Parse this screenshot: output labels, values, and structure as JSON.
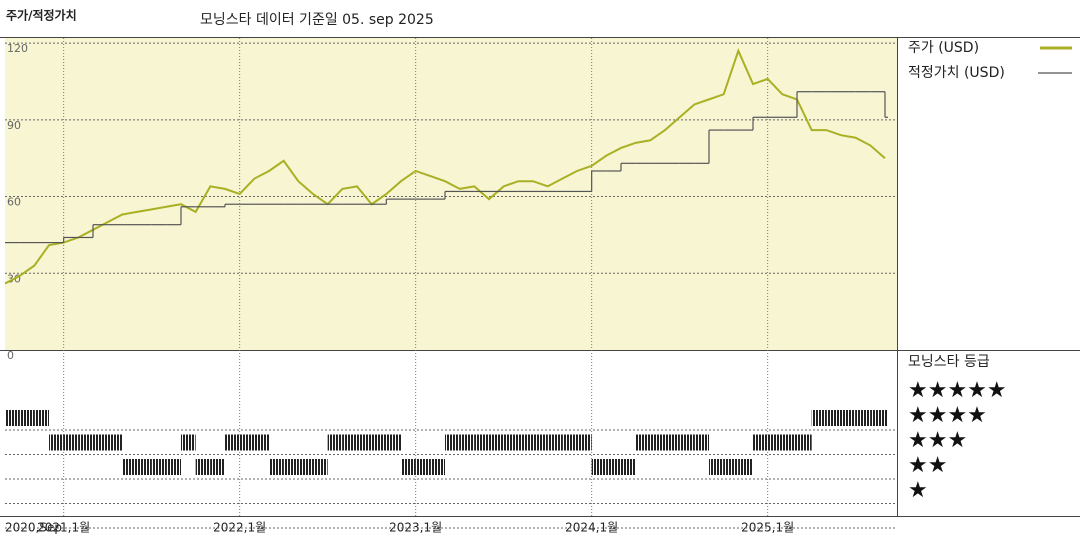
{
  "chart_data": [
    {
      "type": "line",
      "title": "주가/적정가치",
      "subtitle": "모닝스타 데이터 기준일 05. sep 2025",
      "x": [
        "2020-09",
        "2020-10",
        "2020-11",
        "2020-12",
        "2021-01",
        "2021-02",
        "2021-03",
        "2021-04",
        "2021-05",
        "2021-06",
        "2021-07",
        "2021-08",
        "2021-09",
        "2021-10",
        "2021-11",
        "2021-12",
        "2022-01",
        "2022-02",
        "2022-03",
        "2022-04",
        "2022-05",
        "2022-06",
        "2022-07",
        "2022-08",
        "2022-09",
        "2022-10",
        "2022-11",
        "2022-12",
        "2023-01",
        "2023-02",
        "2023-03",
        "2023-04",
        "2023-05",
        "2023-06",
        "2023-07",
        "2023-08",
        "2023-09",
        "2023-10",
        "2023-11",
        "2023-12",
        "2024-01",
        "2024-02",
        "2024-03",
        "2024-04",
        "2024-05",
        "2024-06",
        "2024-07",
        "2024-08",
        "2024-09",
        "2024-10",
        "2024-11",
        "2024-12",
        "2025-01",
        "2025-02",
        "2025-03",
        "2025-04",
        "2025-05",
        "2025-06",
        "2025-07",
        "2025-08",
        "2025-09"
      ],
      "series": [
        {
          "name": "주가 (USD)",
          "color": "#a9b024",
          "values": [
            26,
            29,
            33,
            41,
            42,
            44,
            47,
            50,
            53,
            54,
            55,
            56,
            57,
            54,
            64,
            63,
            61,
            67,
            70,
            74,
            66,
            61,
            57,
            63,
            64,
            57,
            61,
            66,
            70,
            68,
            66,
            63,
            64,
            59,
            64,
            66,
            66,
            64,
            67,
            70,
            72,
            76,
            79,
            81,
            82,
            86,
            91,
            96,
            98,
            100,
            117,
            104,
            106,
            100,
            98,
            86,
            86,
            84,
            83,
            80,
            75
          ]
        },
        {
          "name": "적정가치 (USD)",
          "color": "#555555",
          "values": [
            42,
            42,
            42,
            42,
            44,
            44,
            49,
            49,
            49,
            49,
            49,
            49,
            56,
            56,
            56,
            57,
            57,
            57,
            57,
            57,
            57,
            57,
            57,
            57,
            57,
            57,
            59,
            59,
            59,
            59,
            62,
            62,
            62,
            62,
            62,
            62,
            62,
            62,
            62,
            62,
            70,
            70,
            73,
            73,
            73,
            73,
            73,
            73,
            86,
            86,
            86,
            91,
            91,
            91,
            101,
            101,
            101,
            101,
            101,
            101,
            91
          ]
        }
      ],
      "ylim": [
        0,
        122
      ],
      "yticks": [
        0,
        30,
        60,
        90,
        120
      ],
      "xticks": [
        {
          "value": "2020-09",
          "label": "2020,Sep"
        },
        {
          "value": "2021-01",
          "label": "2021,1월"
        },
        {
          "value": "2022-01",
          "label": "2022,1월"
        },
        {
          "value": "2023-01",
          "label": "2023,1월"
        },
        {
          "value": "2024-01",
          "label": "2024,1월"
        },
        {
          "value": "2025-01",
          "label": "2025,1월"
        }
      ],
      "background": "#f8f5d2"
    },
    {
      "type": "rating",
      "title": "모닝스타 등급",
      "categories": [
        "★★★★★",
        "★★★★",
        "★★★",
        "★★",
        "★"
      ],
      "x": [
        "2020-09",
        "2020-10",
        "2020-11",
        "2020-12",
        "2021-01",
        "2021-02",
        "2021-03",
        "2021-04",
        "2021-05",
        "2021-06",
        "2021-07",
        "2021-08",
        "2021-09",
        "2021-10",
        "2021-11",
        "2021-12",
        "2022-01",
        "2022-02",
        "2022-03",
        "2022-04",
        "2022-05",
        "2022-06",
        "2022-07",
        "2022-08",
        "2022-09",
        "2022-10",
        "2022-11",
        "2022-12",
        "2023-01",
        "2023-02",
        "2023-03",
        "2023-04",
        "2023-05",
        "2023-06",
        "2023-07",
        "2023-08",
        "2023-09",
        "2023-10",
        "2023-11",
        "2023-12",
        "2024-01",
        "2024-02",
        "2024-03",
        "2024-04",
        "2024-05",
        "2024-06",
        "2024-07",
        "2024-08",
        "2024-09",
        "2024-10",
        "2024-11",
        "2024-12",
        "2025-01",
        "2025-02",
        "2025-03",
        "2025-04",
        "2025-05",
        "2025-06",
        "2025-07",
        "2025-08",
        "2025-09"
      ],
      "values": [
        5,
        5,
        5,
        4,
        4,
        4,
        4,
        4,
        3,
        3,
        3,
        3,
        4,
        3,
        3,
        4,
        4,
        4,
        3,
        3,
        3,
        3,
        4,
        4,
        4,
        4,
        4,
        3,
        3,
        3,
        4,
        4,
        4,
        4,
        4,
        4,
        4,
        4,
        4,
        4,
        3,
        3,
        3,
        4,
        4,
        4,
        4,
        4,
        3,
        3,
        3,
        4,
        4,
        4,
        4,
        5,
        5,
        5,
        5,
        5,
        5
      ],
      "color": "#222222"
    }
  ]
}
